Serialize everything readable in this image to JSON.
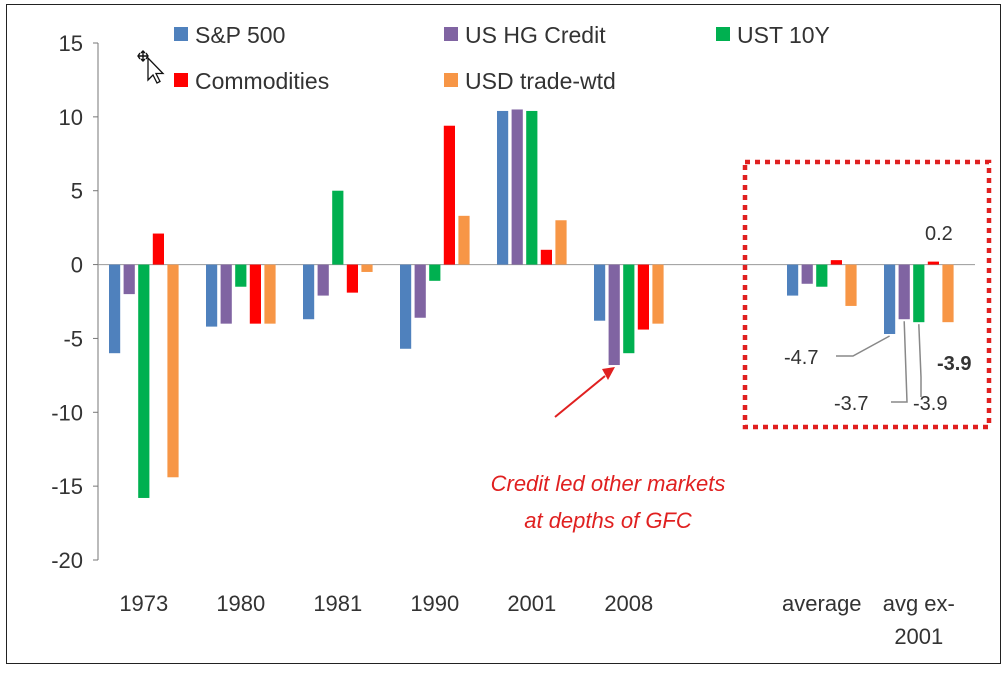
{
  "chart_data": {
    "type": "bar",
    "categories": [
      "1973",
      "1980",
      "1981",
      "1990",
      "2001",
      "2008",
      "average",
      "avg ex-2001"
    ],
    "category_label_lines": [
      [
        "1973"
      ],
      [
        "1980"
      ],
      [
        "1981"
      ],
      [
        "1990"
      ],
      [
        "2001"
      ],
      [
        "2008"
      ],
      [
        "average"
      ],
      [
        "avg ex-",
        "2001"
      ]
    ],
    "series": [
      {
        "name": "S&P 500",
        "color": "#4f81bd",
        "values": [
          -6.0,
          -4.2,
          -3.7,
          -5.7,
          10.4,
          -3.8,
          -2.1,
          -4.7
        ]
      },
      {
        "name": "US HG Credit",
        "color": "#8064a2",
        "values": [
          -2.0,
          -4.0,
          -2.1,
          -3.6,
          10.5,
          -6.8,
          -1.3,
          -3.7
        ]
      },
      {
        "name": "UST 10Y",
        "color": "#00b050",
        "values": [
          -15.8,
          -1.5,
          5.0,
          -1.1,
          10.4,
          -6.0,
          -1.5,
          -3.9
        ]
      },
      {
        "name": "Commodities",
        "color": "#ff0000",
        "values": [
          2.1,
          -4.0,
          -1.9,
          9.4,
          1.0,
          -4.4,
          0.3,
          0.2
        ]
      },
      {
        "name": "USD trade-wtd",
        "color": "#f79646",
        "values": [
          -14.4,
          -4.0,
          -0.5,
          3.3,
          3.0,
          -4.0,
          -2.8,
          -3.9
        ]
      }
    ],
    "yticks": [
      15,
      10,
      5,
      0,
      -5,
      -10,
      -15,
      -20
    ],
    "ylim": [
      -20,
      15
    ],
    "legend_position": "top",
    "grid": false,
    "annotations": {
      "callout_lines": [
        "Credit led other markets",
        "at depths of GFC"
      ],
      "label_neg47": "-4.7",
      "label_neg37": "-3.7",
      "label_neg39": "-3.9",
      "label_neg39_bold": "-3.9",
      "label_02": "0.2"
    }
  }
}
